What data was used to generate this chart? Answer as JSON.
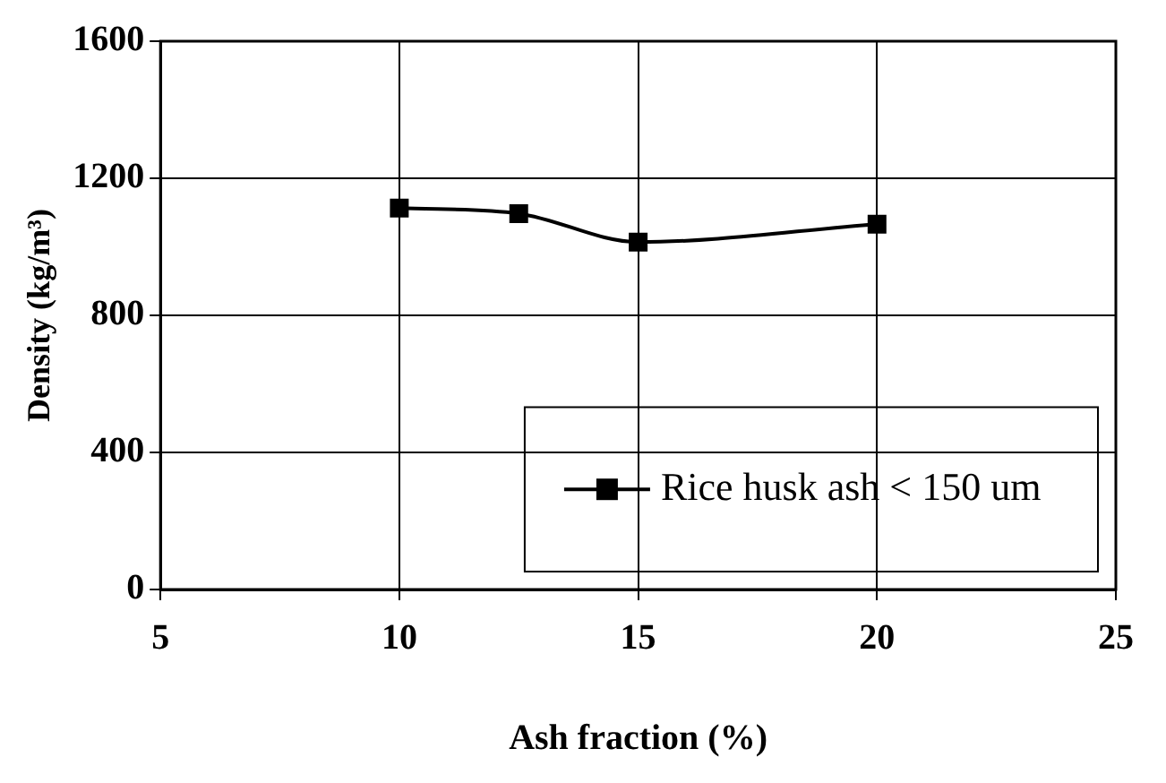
{
  "chart_data": {
    "type": "line",
    "xlabel": "Ash fraction (%)",
    "ylabel": "Density (kg/m³)",
    "x": [
      10,
      12.5,
      15,
      20
    ],
    "series": [
      {
        "name": "Rice husk ash < 150 um",
        "color": "#000000",
        "values": [
          1113,
          1097,
          1014,
          1066
        ]
      }
    ],
    "xlim": [
      5,
      25
    ],
    "xticks": [
      5,
      10,
      15,
      20,
      25
    ],
    "ylim": [
      0,
      1600
    ],
    "yticks": [
      0,
      400,
      800,
      1200,
      1600
    ],
    "grid": true,
    "legend": "bottom right",
    "marker": "square",
    "line_style": "solid"
  }
}
